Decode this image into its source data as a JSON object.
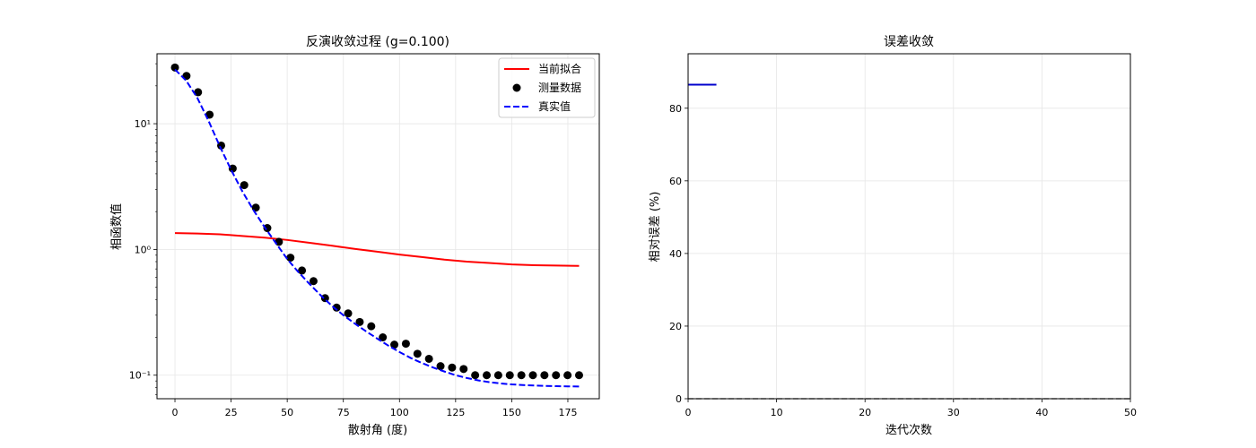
{
  "chart_data": [
    {
      "type": "line",
      "title": "反演收敛过程 (g=0.100)",
      "xlabel": "散射角 (度)",
      "ylabel": "相函数值",
      "xscale": "linear",
      "yscale": "log",
      "xlim": [
        -8,
        189
      ],
      "ylim": [
        0.065,
        36
      ],
      "xticks": [
        0,
        25,
        50,
        75,
        100,
        125,
        150,
        175
      ],
      "yticks": [
        0.1,
        1,
        10
      ],
      "yticklabels": [
        "10⁻¹",
        "10⁰",
        "10¹"
      ],
      "grid": true,
      "legend_position": "top-right",
      "series": [
        {
          "name": "当前拟合",
          "style": "solid-line",
          "color": "#ff0000",
          "x": [
            0,
            10,
            20,
            30,
            40,
            50,
            60,
            70,
            80,
            90,
            100,
            110,
            120,
            130,
            140,
            150,
            160,
            170,
            180
          ],
          "y": [
            1.35,
            1.34,
            1.32,
            1.28,
            1.24,
            1.19,
            1.13,
            1.07,
            1.01,
            0.96,
            0.91,
            0.87,
            0.83,
            0.8,
            0.78,
            0.76,
            0.75,
            0.745,
            0.74
          ]
        },
        {
          "name": "测量数据",
          "style": "markers",
          "color": "#000000",
          "x": [
            0,
            5.14,
            10.29,
            15.43,
            20.57,
            25.71,
            30.86,
            36,
            41.14,
            46.29,
            51.43,
            56.57,
            61.71,
            66.86,
            72,
            77.14,
            82.29,
            87.43,
            92.57,
            97.71,
            102.86,
            108,
            113.14,
            118.29,
            123.43,
            128.57,
            133.71,
            138.86,
            144,
            149.14,
            154.29,
            159.43,
            164.57,
            169.71,
            174.86,
            180
          ],
          "y": [
            28,
            24,
            17.8,
            11.8,
            6.7,
            4.4,
            3.25,
            2.15,
            1.48,
            1.15,
            0.86,
            0.68,
            0.56,
            0.41,
            0.345,
            0.31,
            0.265,
            0.245,
            0.2,
            0.175,
            0.178,
            0.148,
            0.135,
            0.118,
            0.115,
            0.112,
            0.1,
            0.1,
            0.1,
            0.1,
            0.1,
            0.1,
            0.1,
            0.1,
            0.1,
            0.1
          ]
        },
        {
          "name": "真实值",
          "style": "dashed-line",
          "color": "#0000ff",
          "x": [
            0,
            5,
            10,
            15,
            20,
            25,
            30,
            35,
            40,
            45,
            50,
            55,
            60,
            65,
            70,
            75,
            80,
            85,
            90,
            95,
            100,
            105,
            110,
            115,
            120,
            125,
            130,
            135,
            140,
            145,
            150,
            155,
            160,
            165,
            170,
            175,
            180
          ],
          "y": [
            27,
            22,
            16,
            10.5,
            6.6,
            4.3,
            2.9,
            2.05,
            1.5,
            1.12,
            0.84,
            0.66,
            0.53,
            0.43,
            0.355,
            0.3,
            0.258,
            0.224,
            0.196,
            0.172,
            0.153,
            0.137,
            0.125,
            0.115,
            0.107,
            0.1,
            0.095,
            0.091,
            0.088,
            0.086,
            0.0845,
            0.0835,
            0.0828,
            0.0822,
            0.0818,
            0.0815,
            0.0813
          ]
        }
      ]
    },
    {
      "type": "line",
      "title": "误差收敛",
      "xlabel": "迭代次数",
      "ylabel": "相对误差 (%)",
      "xscale": "linear",
      "yscale": "linear",
      "xlim": [
        0,
        50
      ],
      "ylim": [
        0,
        95
      ],
      "xticks": [
        0,
        10,
        20,
        30,
        40,
        50
      ],
      "yticks": [
        0,
        20,
        40,
        60,
        80
      ],
      "grid": true,
      "series": [
        {
          "style": "solid-line",
          "color": "#0000cc",
          "x": [
            0,
            3.2
          ],
          "y": [
            86.5,
            86.5
          ]
        },
        {
          "style": "dashed-reference",
          "color": "#808080",
          "x": [
            0,
            50
          ],
          "y": [
            0,
            0
          ]
        }
      ]
    }
  ]
}
